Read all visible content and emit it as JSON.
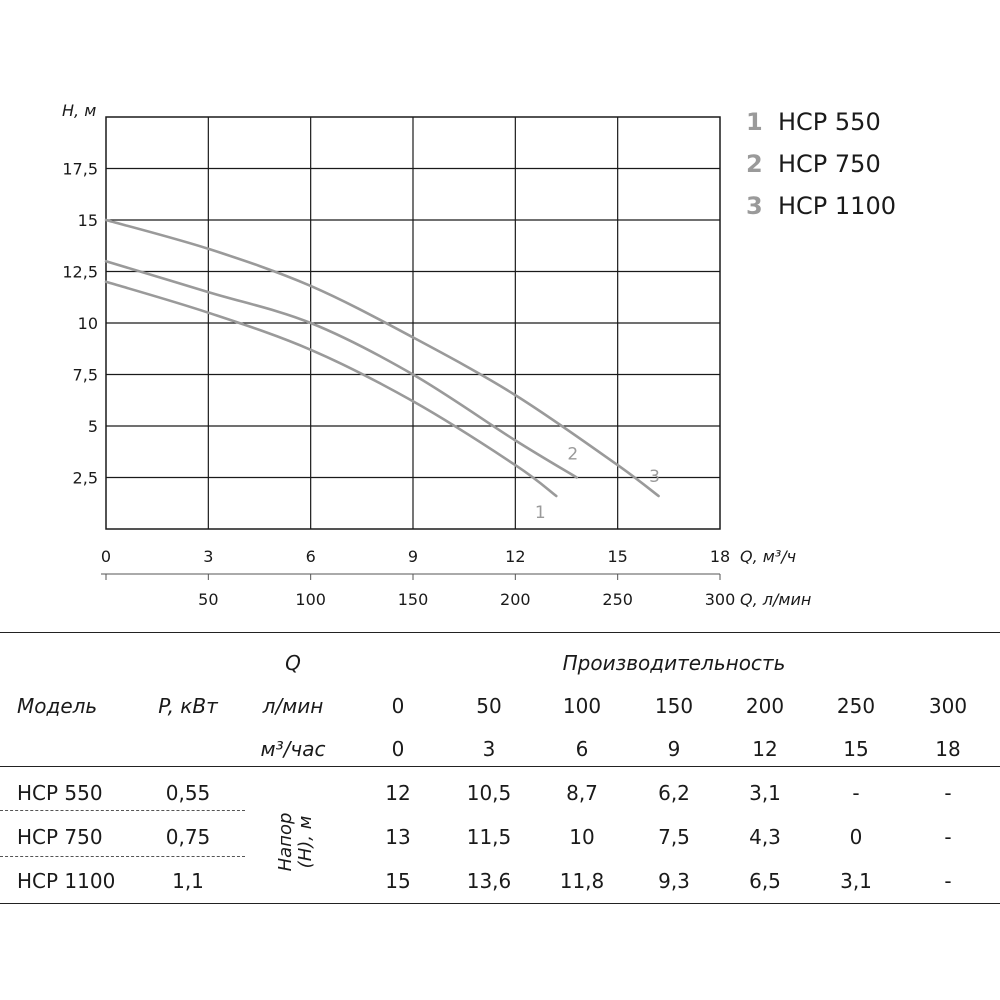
{
  "chart_data": {
    "type": "line",
    "title": "",
    "ylabel": "H, м",
    "xlabel_m3h": "Q, м³/ч",
    "xlabel_lmin": "Q, л/мин",
    "ylim": [
      0,
      20
    ],
    "xlim_m3h": [
      0,
      18
    ],
    "xlim_lmin": [
      0,
      300
    ],
    "y_ticks": [
      "2,5",
      "5",
      "7,5",
      "10",
      "12,5",
      "15",
      "17,5"
    ],
    "y_tick_values": [
      2.5,
      5,
      7.5,
      10,
      12.5,
      15,
      17.5
    ],
    "x_ticks_m3h": [
      "0",
      "3",
      "6",
      "9",
      "12",
      "15",
      "18"
    ],
    "x_tick_values_m3h": [
      0,
      3,
      6,
      9,
      12,
      15,
      18
    ],
    "x_ticks_lmin": [
      "50",
      "100",
      "150",
      "200",
      "250",
      "300"
    ],
    "x_tick_values_lmin": [
      50,
      100,
      150,
      200,
      250,
      300
    ],
    "grid": true,
    "legend": [
      {
        "number": "1",
        "name": "HCP 550"
      },
      {
        "number": "2",
        "name": "HCP 750"
      },
      {
        "number": "3",
        "name": "HCP 1100"
      }
    ],
    "series": [
      {
        "label": "1",
        "x": [
          0,
          3,
          6,
          9,
          12,
          13.2
        ],
        "y": [
          12,
          10.5,
          8.7,
          6.2,
          3.1,
          1.6
        ]
      },
      {
        "label": "2",
        "x": [
          0,
          3,
          6,
          9,
          12,
          13.8
        ],
        "y": [
          13,
          11.5,
          10,
          7.5,
          4.3,
          2.5
        ]
      },
      {
        "label": "3",
        "x": [
          0,
          3,
          6,
          9,
          12,
          15,
          16.2
        ],
        "y": [
          15,
          13.6,
          11.8,
          9.3,
          6.5,
          3.1,
          1.6
        ]
      }
    ],
    "colors": {
      "curve": "#9a9a9a",
      "grid": "#1a1a1a",
      "legend_number": "#9a9a9a"
    }
  },
  "table": {
    "q_header": "Q",
    "perf_header": "Производительность",
    "model_header": "Модель",
    "power_header": "P, кВт",
    "lmin_label": "л/мин",
    "m3h_label": "м³/час",
    "head_label_line1": "Напор",
    "head_label_line2": "(H), м",
    "lmin_values": [
      "0",
      "50",
      "100",
      "150",
      "200",
      "250",
      "300"
    ],
    "m3h_values": [
      "0",
      "3",
      "6",
      "9",
      "12",
      "15",
      "18"
    ],
    "rows": [
      {
        "model": "HCP 550",
        "power": "0,55",
        "values": [
          "12",
          "10,5",
          "8,7",
          "6,2",
          "3,1",
          "-",
          "-"
        ]
      },
      {
        "model": "HCP 750",
        "power": "0,75",
        "values": [
          "13",
          "11,5",
          "10",
          "7,5",
          "4,3",
          "0",
          "-"
        ]
      },
      {
        "model": "HCP 1100",
        "power": "1,1",
        "values": [
          "15",
          "13,6",
          "11,8",
          "9,3",
          "6,5",
          "3,1",
          "-"
        ]
      }
    ]
  }
}
